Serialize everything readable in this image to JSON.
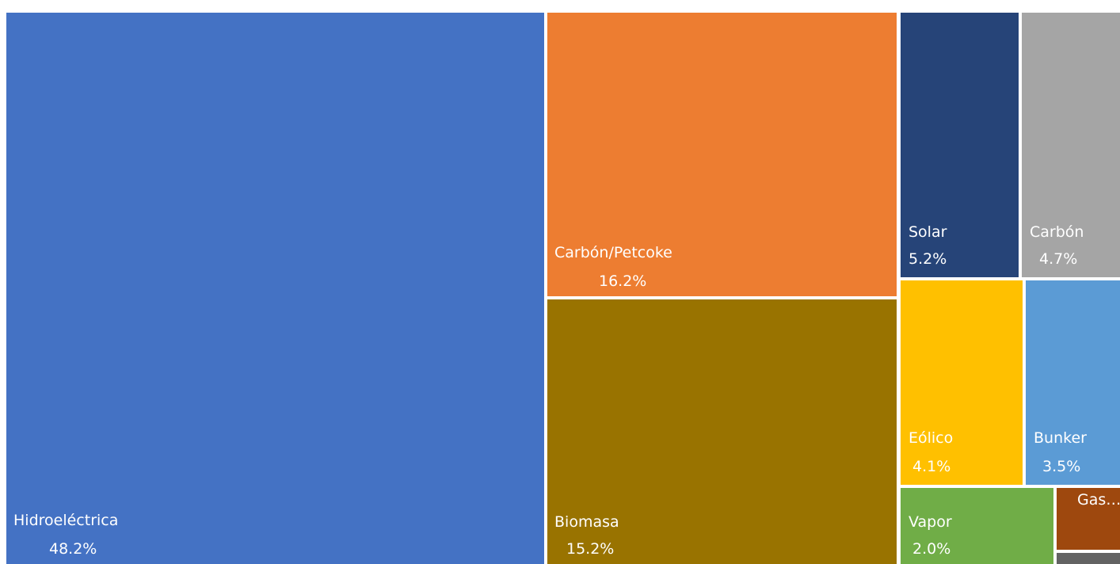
{
  "chart_data": {
    "type": "treemap",
    "title": "",
    "items": [
      {
        "label": "Hidroeléctrica",
        "value_label": "48.2%",
        "value": 48.2,
        "color": "#4472C4"
      },
      {
        "label": "Carbón/Petcoke",
        "value_label": "16.2%",
        "value": 16.2,
        "color": "#ED7D31"
      },
      {
        "label": "Biomasa",
        "value_label": "15.2%",
        "value": 15.2,
        "color": "#997300"
      },
      {
        "label": "Solar",
        "value_label": "5.2%",
        "value": 5.2,
        "color": "#264478"
      },
      {
        "label": "Carbón",
        "value_label": "4.7%",
        "value": 4.7,
        "color": "#A5A5A5"
      },
      {
        "label": "Eólico",
        "value_label": "4.1%",
        "value": 4.1,
        "color": "#FFC000"
      },
      {
        "label": "Bunker",
        "value_label": "3.5%",
        "value": 3.5,
        "color": "#5B9BD5"
      },
      {
        "label": "Vapor",
        "value_label": "2.0%",
        "value": 2.0,
        "color": "#70AD47"
      },
      {
        "label": "Gas…",
        "value_label": "",
        "color": "#9E480E"
      },
      {
        "label": "",
        "value_label": "",
        "color": "#636363"
      }
    ]
  }
}
